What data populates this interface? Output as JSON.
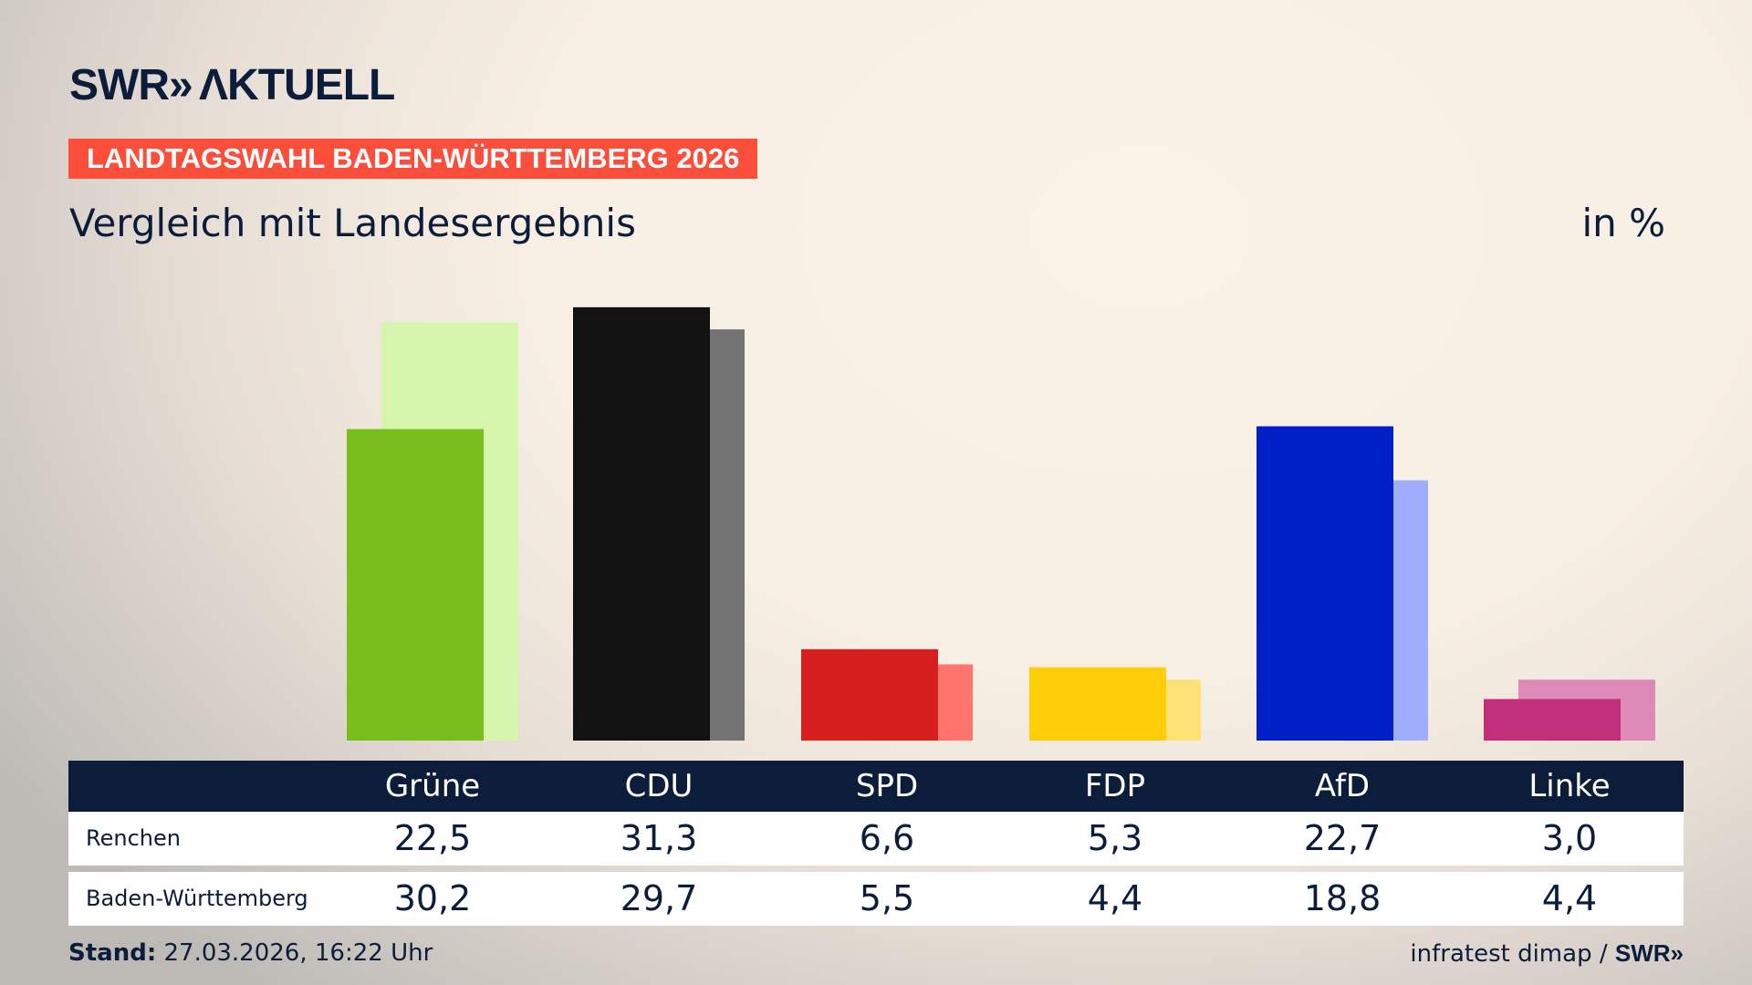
{
  "header": {
    "logo": "SWR» AKTUELL",
    "banner": "LANDTAGSWAHL BADEN-WÜRTTEMBERG 2026",
    "subtitle": "Vergleich mit Landesergebnis",
    "unit": "in %"
  },
  "chart_data": {
    "type": "bar",
    "title": "Vergleich mit Landesergebnis",
    "ylabel": "in %",
    "categories": [
      "Grüne",
      "CDU",
      "SPD",
      "FDP",
      "AfD",
      "Linke"
    ],
    "series": [
      {
        "name": "Renchen",
        "values": [
          22.5,
          31.3,
          6.6,
          5.3,
          22.7,
          3.0
        ],
        "display": [
          "22,5",
          "31,3",
          "6,6",
          "5,3",
          "22,7",
          "3,0"
        ],
        "colors": [
          "#7abe1e",
          "#121212",
          "#d81f1f",
          "#ffcd0a",
          "#0020c7",
          "#c0307a"
        ]
      },
      {
        "name": "Baden-Württemberg",
        "values": [
          30.2,
          29.7,
          5.5,
          4.4,
          18.8,
          4.4
        ],
        "display": [
          "30,2",
          "29,7",
          "5,5",
          "4,4",
          "18,8",
          "4,4"
        ],
        "colors": [
          "#d6f5ad",
          "#737373",
          "#ff746d",
          "#ffe275",
          "#9eaefc",
          "#de8ab8"
        ]
      }
    ],
    "grid": false
  },
  "footer": {
    "stand_label": "Stand:",
    "stand_value": "27.03.2026, 16:22 Uhr",
    "source": "infratest dimap /",
    "source_logo": "SWR»"
  },
  "colors": {
    "navy": "#0b1d3a",
    "banner": "#fb4f3c"
  }
}
